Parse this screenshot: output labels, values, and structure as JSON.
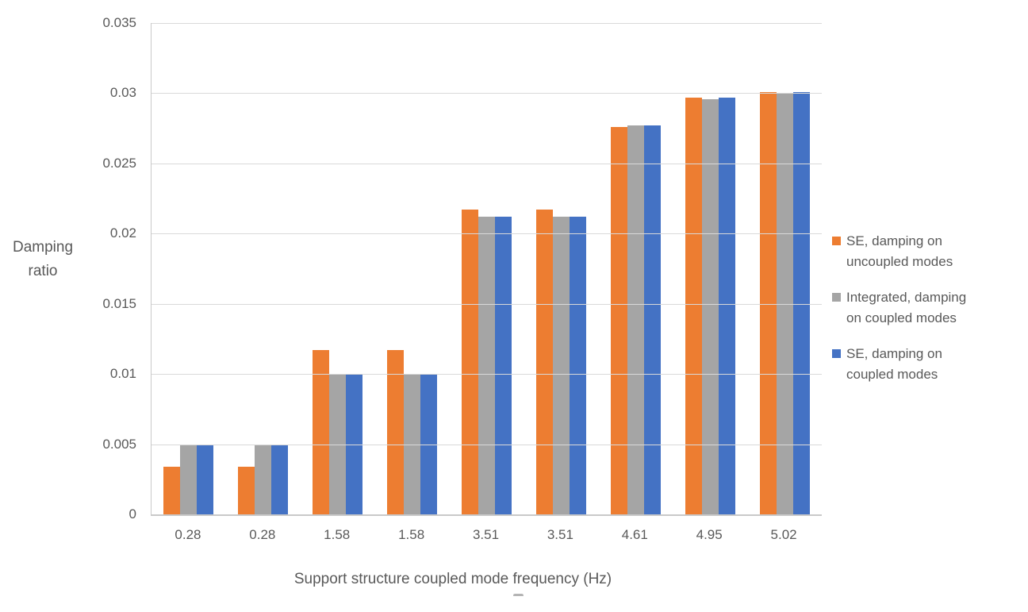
{
  "chart_data": {
    "type": "bar",
    "title": "",
    "xlabel": "Support structure coupled mode frequency (Hz)",
    "ylabel": "Damping ratio",
    "ylabel_lines": [
      "Damping",
      "ratio"
    ],
    "categories": [
      "0.28",
      "0.28",
      "1.58",
      "1.58",
      "3.51",
      "3.51",
      "4.61",
      "4.95",
      "5.02"
    ],
    "series": [
      {
        "key": "se-uncoupled",
        "name": "SE, damping on uncoupled modes",
        "color": "#ED7D31",
        "values": [
          0.0034,
          0.0034,
          0.0117,
          0.0117,
          0.0217,
          0.0217,
          0.0276,
          0.0297,
          0.0301
        ]
      },
      {
        "key": "integrated-coupled",
        "name": "Integrated, damping on coupled modes",
        "color": "#A5A5A5",
        "values": [
          0.005,
          0.005,
          0.01,
          0.01,
          0.0212,
          0.0212,
          0.0277,
          0.0296,
          0.03
        ]
      },
      {
        "key": "se-coupled",
        "name": "SE, damping on coupled modes",
        "color": "#4472C4",
        "values": [
          0.005,
          0.005,
          0.01,
          0.01,
          0.0212,
          0.0212,
          0.0277,
          0.0297,
          0.0301
        ]
      }
    ],
    "ylim": [
      0,
      0.035
    ],
    "ytick_step": 0.005,
    "yticks": [
      "0.035",
      "0.03",
      "0.025",
      "0.02",
      "0.015",
      "0.01",
      "0.005",
      "0"
    ],
    "grid": true,
    "legend_position": "right",
    "grid_color": "#D9D9D9",
    "axis_color": "#C9C9C9",
    "text_color": "#595959"
  },
  "legend": {
    "items": [
      {
        "lines": [
          "SE, damping on",
          "uncoupled modes"
        ],
        "color": "#ED7D31"
      },
      {
        "lines": [
          "Integrated, damping",
          "on coupled modes"
        ],
        "color": "#A5A5A5"
      },
      {
        "lines": [
          "SE, damping on",
          "coupled modes"
        ],
        "color": "#4472C4"
      }
    ]
  }
}
